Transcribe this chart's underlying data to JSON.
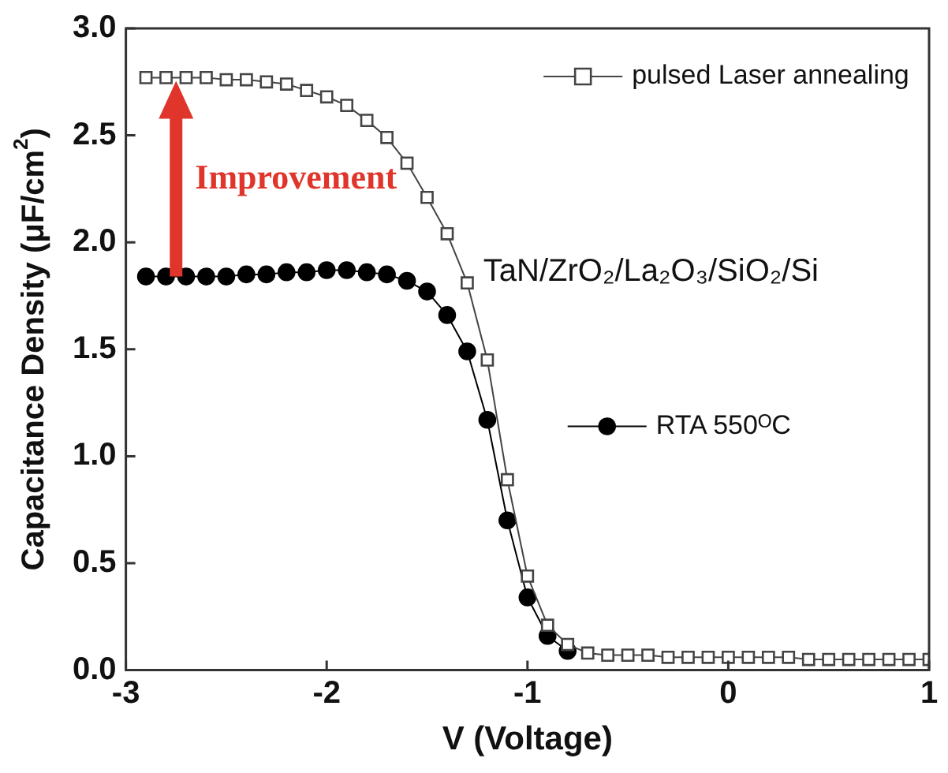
{
  "chart_data": {
    "type": "line",
    "xlabel": "V (Voltage)",
    "ylabel": "Capacitance Density (μF/cm$^{2}$)",
    "x": [
      -2.9,
      -2.8,
      -2.7,
      -2.6,
      -2.5,
      -2.4,
      -2.3,
      -2.2,
      -2.1,
      -2.0,
      -1.9,
      -1.8,
      -1.7,
      -1.6,
      -1.5,
      -1.4,
      -1.3,
      -1.2,
      -1.1,
      -1.0,
      -0.9,
      -0.8,
      -0.7,
      -0.6,
      -0.5,
      -0.4,
      -0.3,
      -0.2,
      -0.1,
      0.0,
      0.1,
      0.2,
      0.3,
      0.4,
      0.5,
      0.6,
      0.7,
      0.8,
      0.9,
      1.0
    ],
    "series": [
      {
        "name": "pulsed Laser annealing",
        "color": "#444444",
        "marker": "square",
        "values": [
          2.77,
          2.77,
          2.77,
          2.77,
          2.76,
          2.76,
          2.75,
          2.74,
          2.71,
          2.68,
          2.64,
          2.57,
          2.49,
          2.37,
          2.21,
          2.04,
          1.81,
          1.45,
          0.89,
          0.44,
          0.21,
          0.12,
          0.08,
          0.07,
          0.07,
          0.07,
          0.06,
          0.06,
          0.06,
          0.06,
          0.06,
          0.06,
          0.06,
          0.05,
          0.05,
          0.05,
          0.05,
          0.05,
          0.05,
          0.05
        ]
      },
      {
        "name": "RTA 550ᴼC",
        "color": "#000000",
        "marker": "circle",
        "values": [
          1.84,
          1.84,
          1.84,
          1.84,
          1.84,
          1.85,
          1.85,
          1.86,
          1.86,
          1.87,
          1.87,
          1.86,
          1.85,
          1.82,
          1.77,
          1.66,
          1.49,
          1.17,
          0.7,
          0.34,
          0.16,
          0.09,
          null,
          null,
          null,
          null,
          null,
          null,
          null,
          null,
          null,
          null,
          null,
          null,
          null,
          null,
          null,
          null,
          null,
          null
        ]
      }
    ],
    "xlim": [
      -3,
      1
    ],
    "xticks": [
      -3,
      -2,
      -1,
      0,
      1
    ],
    "ylim": [
      0,
      3
    ],
    "yticks": [
      {
        "value": 0,
        "label": "0.0"
      },
      {
        "value": 0.5,
        "label": "0.5"
      },
      {
        "value": 1,
        "label": "1.0"
      },
      {
        "value": 1.5,
        "label": "1.5"
      },
      {
        "value": 2,
        "label": "2.0"
      },
      {
        "value": 2.5,
        "label": "2.5"
      },
      {
        "value": 3,
        "label": "3.0"
      }
    ],
    "annotations": [
      "Improvement",
      "TaN/ZrO₂/La₂O₃/SiO₂/Si"
    ],
    "legend": "top right",
    "grid": false,
    "line_style": "solid"
  }
}
